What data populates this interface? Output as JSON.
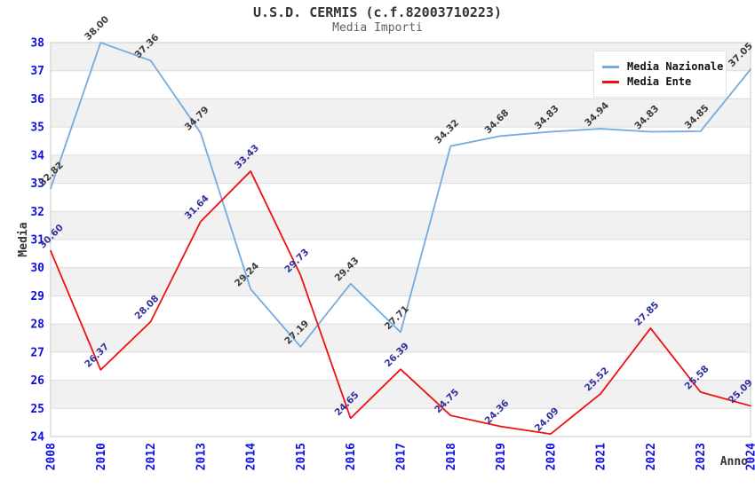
{
  "title": "U.S.D. CERMIS (c.f.82003710223)",
  "subtitle": "Media Importi",
  "chart_data": {
    "type": "line",
    "categories": [
      "2008",
      "2010",
      "2012",
      "2013",
      "2014",
      "2015",
      "2016",
      "2017",
      "2018",
      "2019",
      "2020",
      "2021",
      "2022",
      "2023",
      "2024"
    ],
    "series": [
      {
        "name": "Media Nazionale",
        "color": "#74aadd",
        "label_color": "#3c3c3c",
        "values": [
          32.82,
          38.0,
          37.36,
          34.79,
          29.24,
          27.19,
          29.43,
          27.71,
          34.32,
          34.68,
          34.83,
          34.94,
          34.83,
          34.85,
          37.05
        ]
      },
      {
        "name": "Media Ente",
        "color": "#ee1111",
        "label_color": "#31319c",
        "values": [
          30.6,
          26.37,
          28.08,
          31.64,
          33.43,
          29.73,
          24.65,
          26.39,
          24.75,
          24.36,
          24.09,
          25.52,
          27.85,
          25.58,
          25.09
        ]
      }
    ],
    "xlabel": "Anno",
    "ylabel": "Media",
    "ylim": [
      24,
      38
    ],
    "y_ticks": [
      24,
      25,
      26,
      27,
      28,
      29,
      30,
      31,
      32,
      33,
      34,
      35,
      36,
      37,
      38
    ],
    "legend_position": "top-right",
    "grid": "horizontal-bands",
    "colors": {
      "axis_tick_label": "#0f0fe0",
      "band_fill": "#f1f1f1",
      "gridline": "#dcdcdc",
      "plot_border": "#c9c9c9",
      "axis_title": "#333333"
    }
  }
}
